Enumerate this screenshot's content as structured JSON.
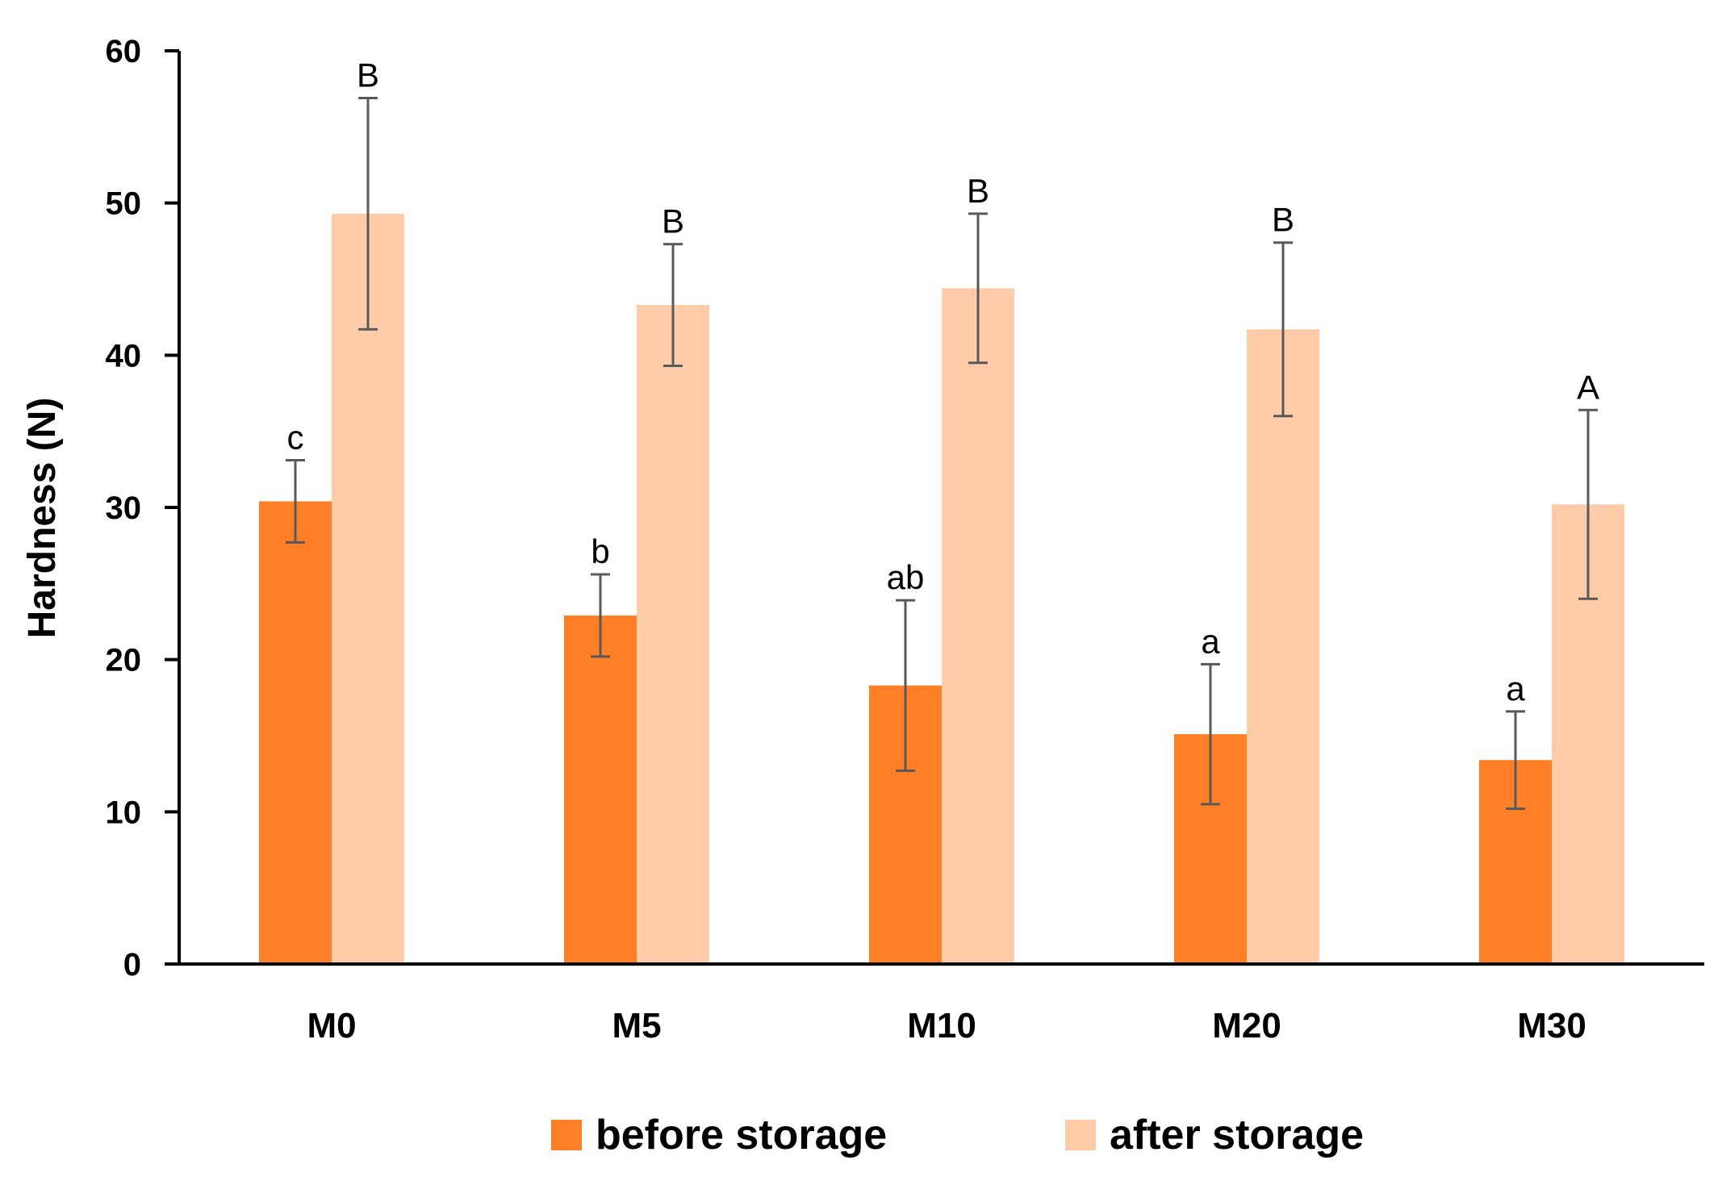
{
  "chart_data": {
    "type": "bar",
    "ylabel": "Hardness (N)",
    "xlabel": "",
    "ylim": [
      0,
      60
    ],
    "yticks": [
      0,
      10,
      20,
      30,
      40,
      50,
      60
    ],
    "categories": [
      "M0",
      "M5",
      "M10",
      "M20",
      "M30"
    ],
    "series": [
      {
        "name": "before storage",
        "color": "#FF7F27",
        "values": [
          30.4,
          22.9,
          18.3,
          15.1,
          13.4
        ],
        "errors": [
          2.7,
          2.7,
          5.6,
          4.6,
          3.2
        ],
        "letters": [
          "c",
          "b",
          "ab",
          "a",
          "a"
        ]
      },
      {
        "name": "after storage",
        "color": "#FFCBA8",
        "values": [
          49.3,
          43.3,
          44.4,
          41.7,
          30.2
        ],
        "errors": [
          7.6,
          4.0,
          4.9,
          5.7,
          6.2
        ],
        "letters": [
          "B",
          "B",
          "B",
          "B",
          "A"
        ]
      }
    ],
    "legend_position": "bottom",
    "grid": false
  }
}
